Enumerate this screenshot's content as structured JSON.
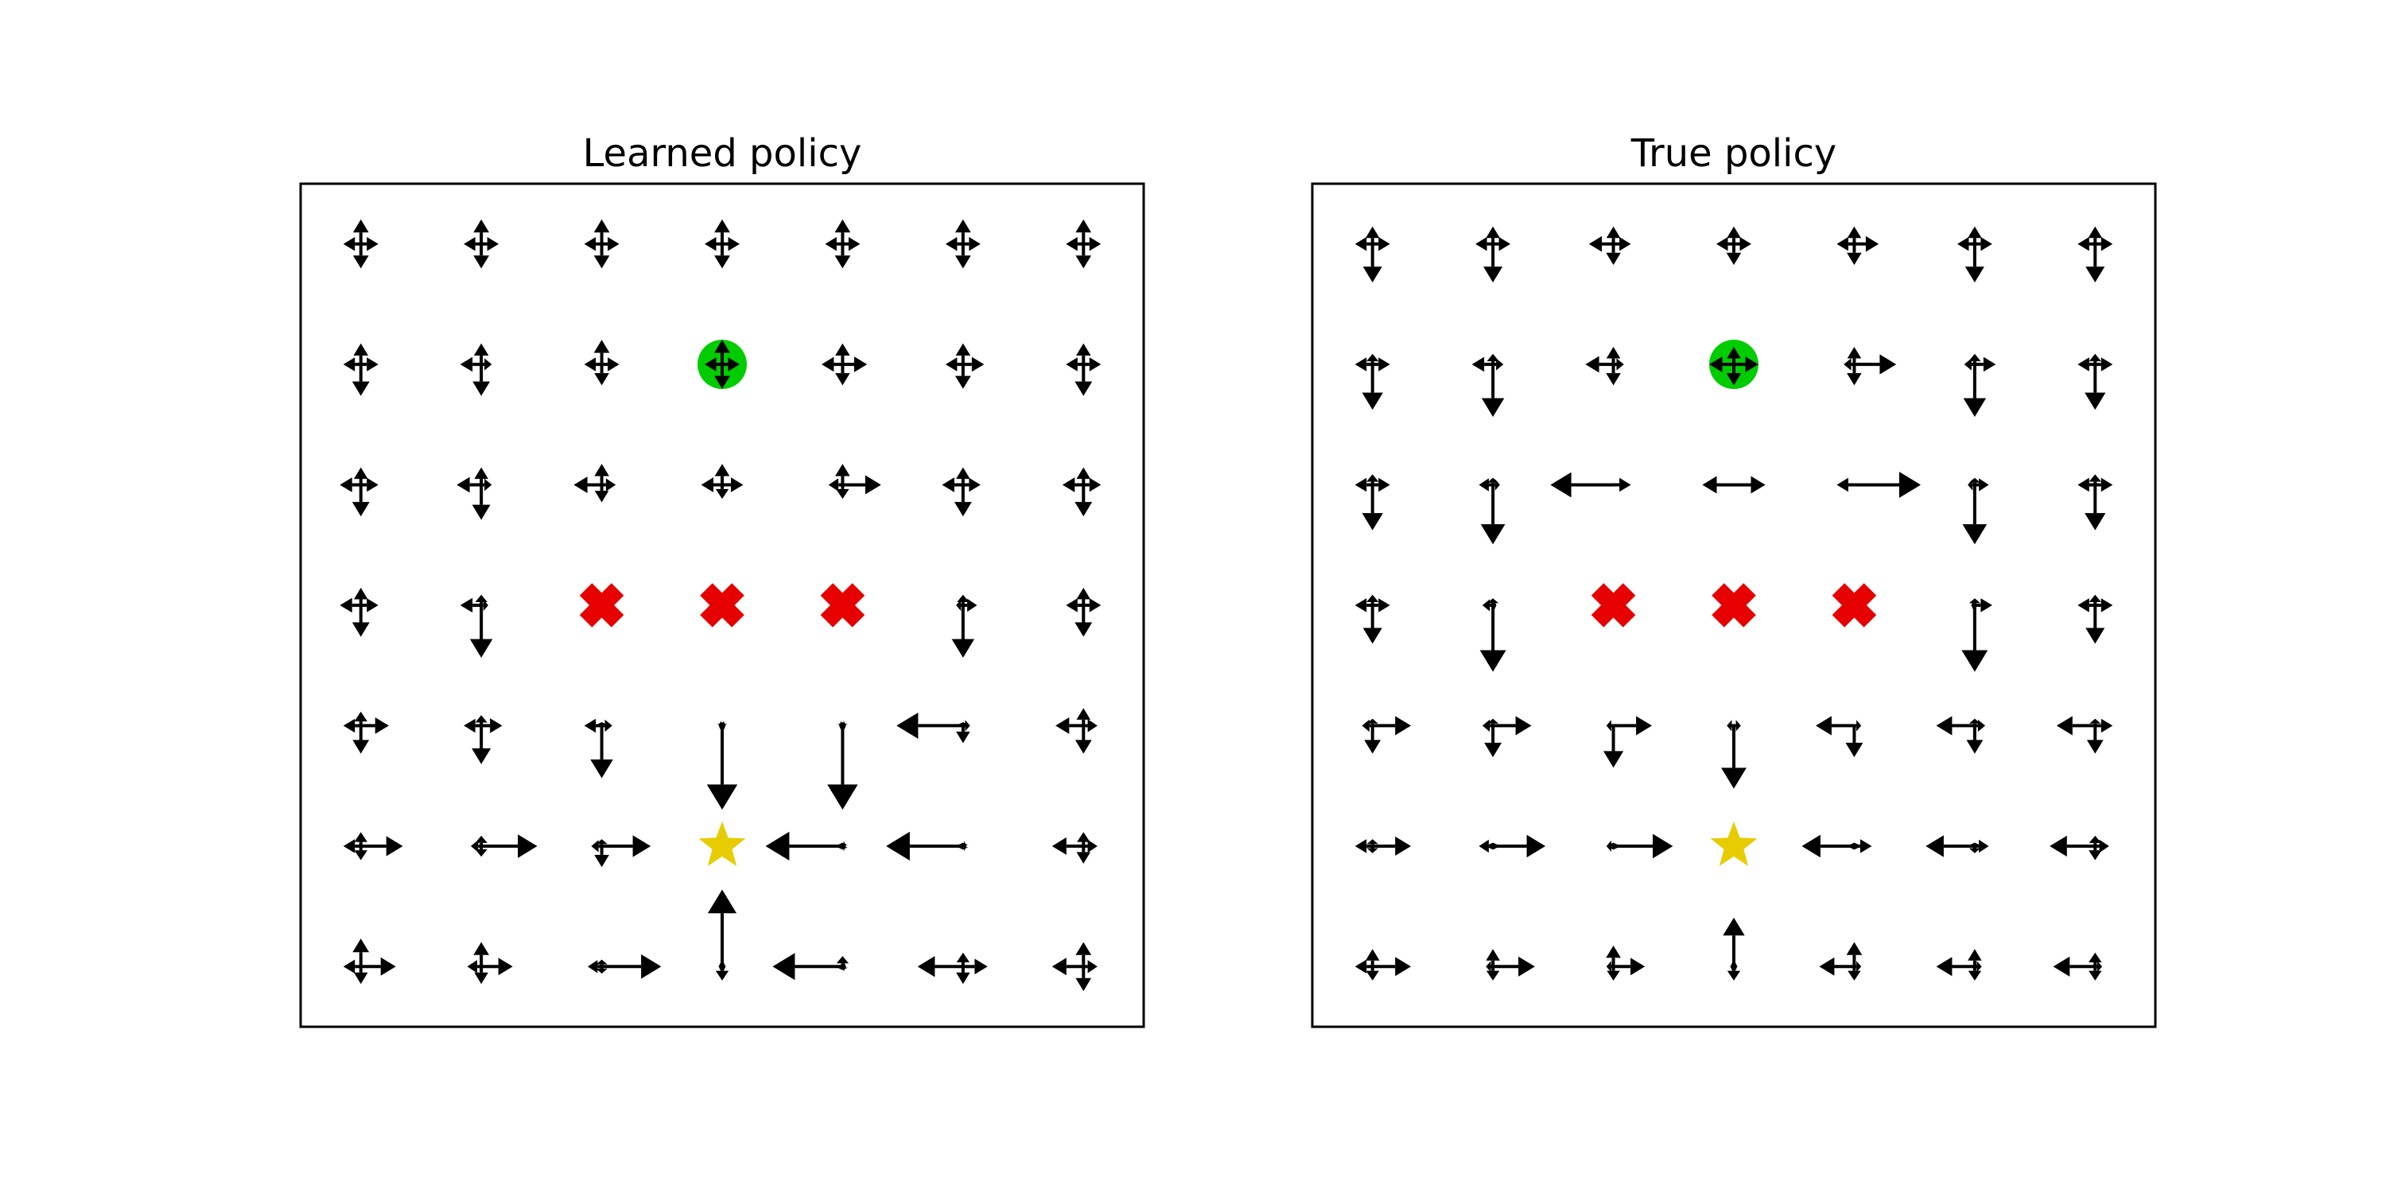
{
  "chart_data": [
    {
      "type": "gridworld-policy",
      "title": "Learned policy",
      "grid_size": [
        7,
        7
      ],
      "actions": [
        "up",
        "down",
        "left",
        "right"
      ],
      "start": [
        1,
        3
      ],
      "goal": [
        5,
        3
      ],
      "obstacles": [
        [
          3,
          2
        ],
        [
          3,
          3
        ],
        [
          3,
          4
        ]
      ],
      "policy": [
        [
          [
            0.35,
            0.35,
            0.25,
            0.25
          ],
          [
            0.35,
            0.35,
            0.25,
            0.25
          ],
          [
            0.35,
            0.35,
            0.25,
            0.25
          ],
          [
            0.35,
            0.35,
            0.25,
            0.25
          ],
          [
            0.35,
            0.35,
            0.25,
            0.25
          ],
          [
            0.35,
            0.35,
            0.25,
            0.25
          ],
          [
            0.35,
            0.35,
            0.25,
            0.25
          ]
        ],
        [
          [
            0.3,
            0.45,
            0.25,
            0.25
          ],
          [
            0.3,
            0.45,
            0.3,
            0.15
          ],
          [
            0.35,
            0.3,
            0.25,
            0.25
          ],
          [
            0.35,
            0.35,
            0.25,
            0.25
          ],
          [
            0.3,
            0.3,
            0.3,
            0.35
          ],
          [
            0.3,
            0.35,
            0.25,
            0.3
          ],
          [
            0.3,
            0.45,
            0.25,
            0.25
          ]
        ],
        [
          [
            0.25,
            0.45,
            0.3,
            0.25
          ],
          [
            0.25,
            0.5,
            0.35,
            0.15
          ],
          [
            0.3,
            0.25,
            0.4,
            0.2
          ],
          [
            0.3,
            0.2,
            0.3,
            0.3
          ],
          [
            0.3,
            0.2,
            0.2,
            0.55
          ],
          [
            0.25,
            0.45,
            0.3,
            0.25
          ],
          [
            0.25,
            0.45,
            0.3,
            0.25
          ]
        ],
        [
          [
            0.25,
            0.45,
            0.3,
            0.25
          ],
          [
            0.15,
            0.75,
            0.3,
            0.1
          ],
          [
            0,
            0,
            0,
            0
          ],
          [
            0,
            0,
            0,
            0
          ],
          [
            0,
            0,
            0,
            0
          ],
          [
            0.15,
            0.75,
            0.1,
            0.2
          ],
          [
            0.25,
            0.45,
            0.25,
            0.25
          ]
        ],
        [
          [
            0.2,
            0.4,
            0.25,
            0.4
          ],
          [
            0.15,
            0.55,
            0.25,
            0.3
          ],
          [
            0.05,
            0.75,
            0.25,
            0.15
          ],
          [
            0.05,
            1.2,
            0.05,
            0.05
          ],
          [
            0.05,
            1.2,
            0.05,
            0.05
          ],
          [
            0.05,
            0.25,
            0.95,
            0.1
          ],
          [
            0.25,
            0.4,
            0.4,
            0.2
          ]
        ],
        [
          [
            0.2,
            0.2,
            0.25,
            0.6
          ],
          [
            0.15,
            0.15,
            0.15,
            0.8
          ],
          [
            0.1,
            0.3,
            0.15,
            0.7
          ],
          [
            0,
            0,
            0,
            0
          ],
          [
            0.05,
            0.05,
            1.1,
            0.05
          ],
          [
            0.05,
            0.05,
            1.1,
            0.05
          ],
          [
            0.2,
            0.25,
            0.45,
            0.2
          ]
        ],
        [
          [
            0.4,
            0.25,
            0.25,
            0.5
          ],
          [
            0.35,
            0.25,
            0.2,
            0.45
          ],
          [
            0.1,
            0.1,
            0.2,
            0.85
          ],
          [
            1.1,
            0.2,
            0.05,
            0.05
          ],
          [
            0.15,
            0.05,
            1.0,
            0.05
          ],
          [
            0.2,
            0.25,
            0.65,
            0.35
          ],
          [
            0.35,
            0.35,
            0.45,
            0.2
          ]
        ]
      ]
    },
    {
      "type": "gridworld-policy",
      "title": "True policy",
      "grid_size": [
        7,
        7
      ],
      "actions": [
        "up",
        "down",
        "left",
        "right"
      ],
      "start": [
        1,
        3
      ],
      "goal": [
        5,
        3
      ],
      "obstacles": [
        [
          3,
          2
        ],
        [
          3,
          3
        ],
        [
          3,
          4
        ]
      ],
      "policy": [
        [
          [
            0.25,
            0.55,
            0.25,
            0.25
          ],
          [
            0.25,
            0.55,
            0.25,
            0.25
          ],
          [
            0.25,
            0.3,
            0.35,
            0.25
          ],
          [
            0.25,
            0.3,
            0.25,
            0.25
          ],
          [
            0.25,
            0.3,
            0.25,
            0.35
          ],
          [
            0.25,
            0.55,
            0.25,
            0.25
          ],
          [
            0.25,
            0.55,
            0.25,
            0.25
          ]
        ],
        [
          [
            0.15,
            0.65,
            0.25,
            0.25
          ],
          [
            0.15,
            0.75,
            0.3,
            0.15
          ],
          [
            0.25,
            0.3,
            0.4,
            0.15
          ],
          [
            0.25,
            0.3,
            0.35,
            0.35
          ],
          [
            0.25,
            0.3,
            0.15,
            0.6
          ],
          [
            0.15,
            0.75,
            0.15,
            0.3
          ],
          [
            0.15,
            0.65,
            0.25,
            0.25
          ]
        ],
        [
          [
            0.15,
            0.65,
            0.25,
            0.25
          ],
          [
            0.1,
            0.85,
            0.2,
            0.1
          ],
          [
            0,
            0,
            0.9,
            0.25
          ],
          [
            0,
            0,
            0.45,
            0.45
          ],
          [
            0,
            0,
            0.25,
            0.95
          ],
          [
            0.1,
            0.85,
            0.1,
            0.2
          ],
          [
            0.15,
            0.65,
            0.25,
            0.25
          ]
        ],
        [
          [
            0.15,
            0.55,
            0.25,
            0.25
          ],
          [
            0.1,
            0.95,
            0.15,
            0.05
          ],
          [
            0,
            0,
            0,
            0
          ],
          [
            0,
            0,
            0,
            0
          ],
          [
            0,
            0,
            0,
            0
          ],
          [
            0.1,
            0.95,
            0.05,
            0.25
          ],
          [
            0.15,
            0.55,
            0.25,
            0.25
          ]
        ],
        [
          [
            0.1,
            0.4,
            0.15,
            0.55
          ],
          [
            0.1,
            0.45,
            0.15,
            0.55
          ],
          [
            0,
            0.6,
            0.1,
            0.55
          ],
          [
            0,
            0.9,
            0.1,
            0.1
          ],
          [
            0,
            0.45,
            0.55,
            0.1
          ],
          [
            0.1,
            0.4,
            0.55,
            0.15
          ],
          [
            0.1,
            0.4,
            0.55,
            0.25
          ]
        ],
        [
          [
            0.1,
            0.1,
            0.25,
            0.55
          ],
          [
            0.05,
            0.05,
            0.2,
            0.75
          ],
          [
            0.05,
            0.05,
            0.1,
            0.85
          ],
          [
            0,
            0,
            0,
            0
          ],
          [
            0.05,
            0.05,
            0.75,
            0.25
          ],
          [
            0.05,
            0.1,
            0.7,
            0.2
          ],
          [
            0.15,
            0.2,
            0.65,
            0.2
          ]
        ],
        [
          [
            0.25,
            0.2,
            0.25,
            0.55
          ],
          [
            0.25,
            0.2,
            0.1,
            0.6
          ],
          [
            0.3,
            0.2,
            0.1,
            0.45
          ],
          [
            0.7,
            0.2,
            0.05,
            0.05
          ],
          [
            0.35,
            0.2,
            0.5,
            0.1
          ],
          [
            0.25,
            0.2,
            0.55,
            0.1
          ],
          [
            0.2,
            0.2,
            0.6,
            0.1
          ]
        ]
      ]
    }
  ],
  "colors": {
    "arrow": "#000000",
    "start_marker": "#00cc00",
    "goal_marker": "#e6cc00",
    "obstacle_marker": "#e60000"
  }
}
